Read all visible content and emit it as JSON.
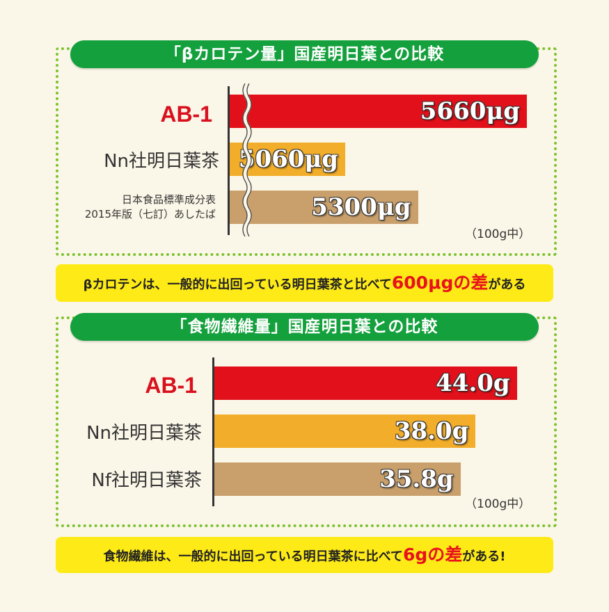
{
  "chart_data": [
    {
      "type": "bar",
      "orientation": "horizontal",
      "title": "「βカロテン量」国産明日葉との比較",
      "categories": [
        "AB-1",
        "Nn社明日葉茶",
        "日本食品標準成分表 2015年版（七訂）あしたば"
      ],
      "values": [
        5660,
        5060,
        5300
      ],
      "value_labels": [
        "5660μg",
        "5060μg",
        "5300μg"
      ],
      "unit_note": "（100g中）",
      "axis_break": true,
      "colors": [
        "#e2101a",
        "#f2ae2a",
        "#c9a06c"
      ]
    },
    {
      "type": "bar",
      "orientation": "horizontal",
      "title": "「食物繊維量」国産明日葉との比較",
      "categories": [
        "AB-1",
        "Nn社明日葉茶",
        "Nf社明日葉茶"
      ],
      "values": [
        44.0,
        38.0,
        35.8
      ],
      "value_labels": [
        "44.0g",
        "38.0g",
        "35.8g"
      ],
      "unit_note": "（100g中）",
      "colors": [
        "#e2101a",
        "#f2ae2a",
        "#c9a06c"
      ]
    }
  ],
  "beta": {
    "cat3_line1": "日本食品標準成分表",
    "cat3_line2": "2015年版（七訂）あしたば",
    "banner_pre": "βカロテンは、一般的に出回っている明日葉茶と比べて",
    "banner_hl": "600μgの差",
    "banner_post": "がある"
  },
  "fiber": {
    "banner_pre": "食物繊維は、一般的に出回っている明日葉茶に比べて",
    "banner_hl": "6gの差",
    "banner_post": "がある!"
  }
}
